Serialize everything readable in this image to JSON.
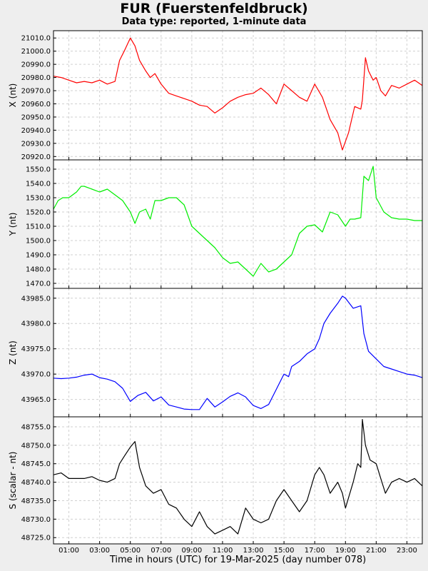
{
  "header": {
    "title": "FUR (Fuerstenfeldbruck)",
    "subtitle": "Data type: reported, 1-minute data"
  },
  "chart_data": {
    "type": "line",
    "xlabel": "Time in hours (UTC) for 19-Mar-2025 (day number 078)",
    "xlim": [
      0,
      24
    ],
    "x_ticks": [
      "01:00",
      "03:00",
      "05:00",
      "07:00",
      "09:00",
      "11:00",
      "13:00",
      "15:00",
      "17:00",
      "19:00",
      "21:00",
      "23:00"
    ],
    "x_tick_hours": [
      1,
      3,
      5,
      7,
      9,
      11,
      13,
      15,
      17,
      19,
      21,
      23
    ],
    "grid": true,
    "panels": [
      {
        "name": "X",
        "ylabel": "X (nt)",
        "color": "#ff0000",
        "ylim": [
          20918,
          21015
        ],
        "y_ticks": [
          "20920.0",
          "20930.0",
          "20940.0",
          "20950.0",
          "20960.0",
          "20970.0",
          "20980.0",
          "20990.0",
          "21000.0",
          "21010.0"
        ],
        "y_tick_values": [
          20920,
          20930,
          20940,
          20950,
          20960,
          20970,
          20980,
          20990,
          21000,
          21010
        ],
        "x": [
          0,
          0.5,
          1,
          1.5,
          2,
          2.5,
          3,
          3.5,
          4,
          4.3,
          4.6,
          5,
          5.3,
          5.6,
          6,
          6.3,
          6.6,
          7,
          7.5,
          8,
          8.5,
          9,
          9.5,
          10,
          10.5,
          11,
          11.5,
          12,
          12.5,
          13,
          13.5,
          14,
          14.5,
          15,
          15.5,
          16,
          16.5,
          17,
          17.5,
          18,
          18.5,
          18.8,
          19.2,
          19.6,
          20,
          20.1,
          20.3,
          20.5,
          20.8,
          21,
          21.3,
          21.6,
          22,
          22.5,
          23,
          23.5,
          24
        ],
        "y": [
          20981,
          20980,
          20978,
          20976,
          20977,
          20976,
          20978,
          20975,
          20977,
          20993,
          21000,
          21010,
          21004,
          20993,
          20985,
          20980,
          20983,
          20975,
          20968,
          20966,
          20964,
          20962,
          20959,
          20958,
          20953,
          20957,
          20962,
          20965,
          20967,
          20968,
          20972,
          20967,
          20960,
          20975,
          20970,
          20965,
          20962,
          20975,
          20965,
          20948,
          20938,
          20925,
          20938,
          20958,
          20956,
          20963,
          20995,
          20985,
          20978,
          20980,
          20970,
          20966,
          20974,
          20972,
          20975,
          20978,
          20974
        ]
      },
      {
        "name": "Y",
        "ylabel": "Y (nt)",
        "color": "#00ee00",
        "ylim": [
          1467,
          1556
        ],
        "y_ticks": [
          "1470.0",
          "1480.0",
          "1490.0",
          "1500.0",
          "1510.0",
          "1520.0",
          "1530.0",
          "1540.0",
          "1550.0"
        ],
        "y_tick_values": [
          1470,
          1480,
          1490,
          1500,
          1510,
          1520,
          1530,
          1540,
          1550
        ],
        "x": [
          0,
          0.3,
          0.6,
          1,
          1.5,
          1.8,
          2,
          2.5,
          3,
          3.5,
          4,
          4.5,
          5,
          5.3,
          5.6,
          6,
          6.3,
          6.6,
          7,
          7.5,
          8,
          8.5,
          9,
          9.5,
          10,
          10.5,
          11,
          11.5,
          12,
          12.5,
          13,
          13.5,
          14,
          14.5,
          15,
          15.5,
          16,
          16.5,
          17,
          17.5,
          18,
          18.5,
          19,
          19.3,
          19.6,
          20,
          20.2,
          20.5,
          20.8,
          21,
          21.5,
          22,
          22.5,
          23,
          23.5,
          24
        ],
        "y": [
          1522,
          1528,
          1530,
          1530,
          1534,
          1538,
          1538,
          1536,
          1534,
          1536,
          1532,
          1528,
          1520,
          1512,
          1520,
          1522,
          1515,
          1528,
          1528,
          1530,
          1530,
          1525,
          1510,
          1505,
          1500,
          1495,
          1488,
          1484,
          1485,
          1480,
          1475,
          1484,
          1478,
          1480,
          1485,
          1490,
          1505,
          1510,
          1511,
          1506,
          1520,
          1518,
          1510,
          1515,
          1515,
          1516,
          1545,
          1542,
          1552,
          1530,
          1520,
          1516,
          1515,
          1515,
          1514,
          1514
        ]
      },
      {
        "name": "Z",
        "ylabel": "Z (nt)",
        "color": "#0000ff",
        "ylim": [
          43961.7,
          43986.8
        ],
        "y_ticks": [
          "43965.0",
          "43970.0",
          "43975.0",
          "43980.0",
          "43985.0"
        ],
        "y_tick_values": [
          43965,
          43970,
          43975,
          43980,
          43985
        ],
        "x": [
          0,
          0.5,
          1,
          1.5,
          2,
          2.5,
          3,
          3.5,
          4,
          4.5,
          5,
          5.5,
          6,
          6.5,
          7,
          7.5,
          8,
          8.5,
          9,
          9.5,
          10,
          10.5,
          11,
          11.5,
          12,
          12.5,
          13,
          13.5,
          14,
          14.5,
          15,
          15.3,
          15.5,
          16,
          16.5,
          17,
          17.3,
          17.6,
          18,
          18.5,
          18.8,
          19,
          19.5,
          20,
          20.2,
          20.5,
          21,
          21.5,
          22,
          22.5,
          23,
          23.5,
          24
        ],
        "y": [
          43969.2,
          43969.1,
          43969.2,
          43969.4,
          43969.8,
          43970.0,
          43969.3,
          43969.0,
          43968.5,
          43967.2,
          43964.6,
          43965.8,
          43966.4,
          43964.7,
          43965.5,
          43963.9,
          43963.5,
          43963.1,
          43963.0,
          43963.0,
          43965.2,
          43963.5,
          43964.5,
          43965.6,
          43966.3,
          43965.5,
          43963.8,
          43963.2,
          43964.0,
          43967.0,
          43970.0,
          43969.5,
          43971.5,
          43972.5,
          43974.0,
          43975.0,
          43977.0,
          43980.0,
          43982.0,
          43984.0,
          43985.4,
          43985.0,
          43983.0,
          43983.5,
          43978.0,
          43974.5,
          43973.0,
          43971.5,
          43971.0,
          43970.5,
          43970.0,
          43969.8,
          43969.3
        ]
      },
      {
        "name": "S",
        "ylabel": "S (scalar - nt)",
        "color": "#000000",
        "ylim": [
          48723.5,
          48757.5
        ],
        "y_ticks": [
          "48725.0",
          "48730.0",
          "48735.0",
          "48740.0",
          "48745.0",
          "48750.0",
          "48755.0"
        ],
        "y_tick_values": [
          48725,
          48730,
          48735,
          48740,
          48745,
          48750,
          48755
        ],
        "x": [
          0,
          0.5,
          1,
          1.5,
          2,
          2.5,
          3,
          3.5,
          4,
          4.3,
          4.6,
          5,
          5.3,
          5.6,
          6,
          6.5,
          7,
          7.5,
          8,
          8.5,
          9,
          9.5,
          10,
          10.5,
          11,
          11.5,
          12,
          12.5,
          13,
          13.5,
          14,
          14.5,
          15,
          15.5,
          16,
          16.5,
          17,
          17.3,
          17.6,
          18,
          18.5,
          18.8,
          19,
          19.5,
          19.8,
          20,
          20.1,
          20.3,
          20.6,
          21,
          21.3,
          21.6,
          22,
          22.5,
          23,
          23.5,
          24
        ],
        "y": [
          48742,
          48742.5,
          48741,
          48741,
          48741,
          48741.5,
          48740.5,
          48740,
          48741,
          48745,
          48747,
          48749.5,
          48751,
          48744,
          48739,
          48737,
          48738,
          48734,
          48733,
          48730,
          48728,
          48732,
          48728,
          48726,
          48727,
          48728,
          48726,
          48733,
          48730,
          48729,
          48730,
          48735,
          48738,
          48735,
          48732,
          48735,
          48742,
          48744,
          48742,
          48737,
          48740,
          48737,
          48733,
          48740,
          48745,
          48744,
          48757,
          48750,
          48746,
          48745,
          48741,
          48737,
          48740,
          48741,
          48740,
          48741,
          48739
        ]
      }
    ]
  }
}
